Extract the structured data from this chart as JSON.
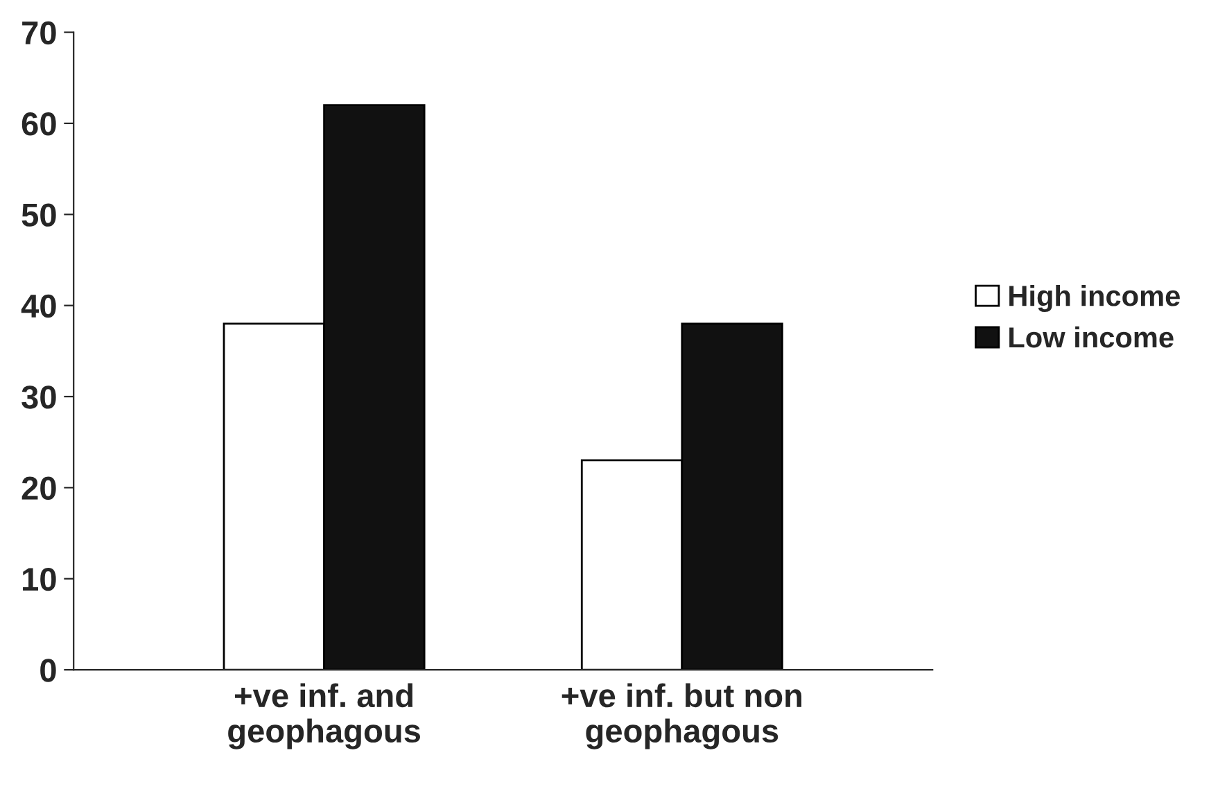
{
  "chart_data": {
    "type": "bar",
    "categories": [
      "+ve inf. and\ngeophagous",
      "+ve inf. but non\ngeophagous"
    ],
    "series": [
      {
        "name": "High income",
        "color": "#ffffff",
        "values": [
          38,
          23
        ]
      },
      {
        "name": "Low income",
        "color": "#111111",
        "values": [
          62,
          38
        ]
      }
    ],
    "ylim": [
      0,
      70
    ],
    "yticks": [
      0,
      10,
      20,
      30,
      40,
      50,
      60,
      70
    ],
    "grid": false,
    "legend": "right"
  }
}
